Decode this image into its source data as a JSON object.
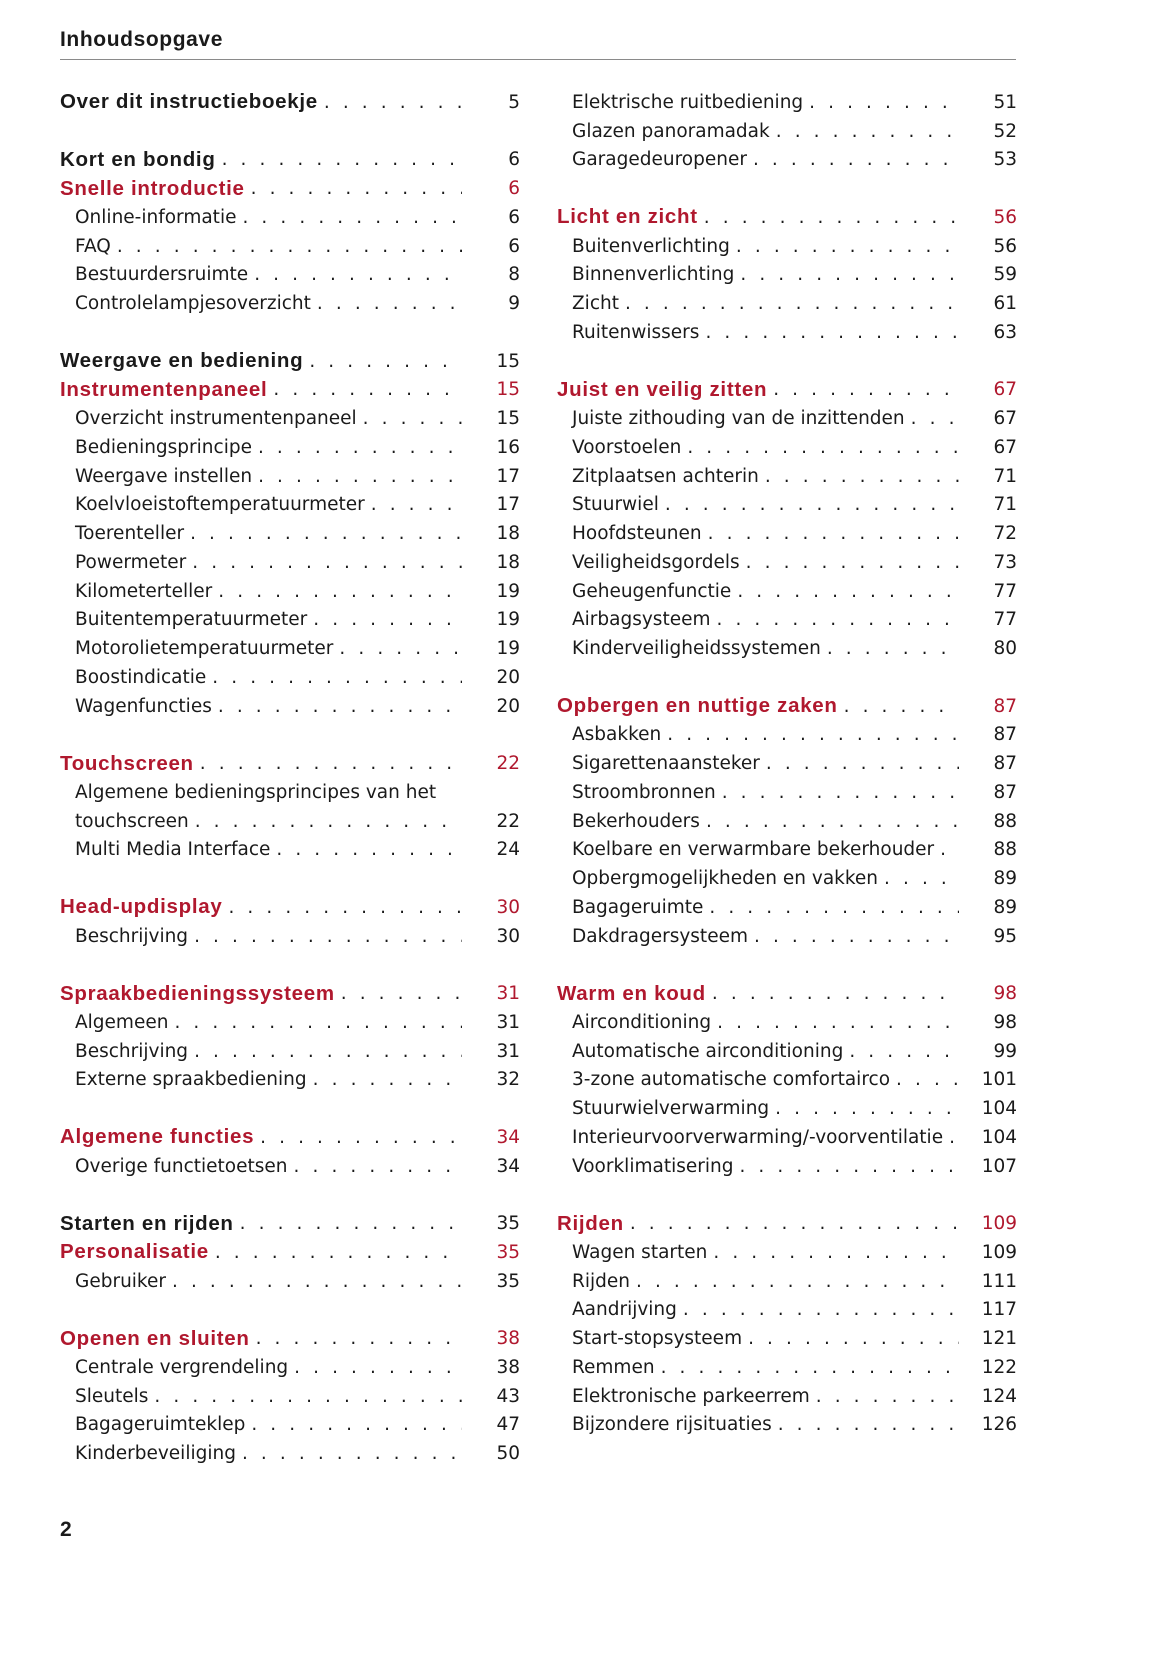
{
  "header": {
    "title": "Inhoudsopgave"
  },
  "page_number": "2",
  "accent_color": "#b0182e",
  "columns": [
    [
      [
        {
          "type": "part",
          "title": "Over dit instructieboekje",
          "page": "5"
        }
      ],
      [
        {
          "type": "part",
          "title": "Kort en bondig",
          "page": "6"
        },
        {
          "type": "chapter",
          "title": "Snelle introductie",
          "page": "6"
        },
        {
          "type": "topic",
          "title": "Online-informatie",
          "page": "6"
        },
        {
          "type": "topic",
          "title": "FAQ",
          "page": "6"
        },
        {
          "type": "topic",
          "title": "Bestuurdersruimte",
          "page": "8"
        },
        {
          "type": "topic",
          "title": "Controlelampjesoverzicht",
          "page": "9"
        }
      ],
      [
        {
          "type": "part",
          "title": "Weergave en bediening",
          "page": "15"
        },
        {
          "type": "chapter",
          "title": "Instrumentenpaneel",
          "page": "15"
        },
        {
          "type": "topic",
          "title": "Overzicht instrumentenpaneel",
          "page": "15"
        },
        {
          "type": "topic",
          "title": "Bedieningsprincipe",
          "page": "16"
        },
        {
          "type": "topic",
          "title": "Weergave instellen",
          "page": "17"
        },
        {
          "type": "topic",
          "title": "Koelvloeistoftemperatuurmeter",
          "page": "17"
        },
        {
          "type": "topic",
          "title": "Toerenteller",
          "page": "18"
        },
        {
          "type": "topic",
          "title": "Powermeter",
          "page": "18"
        },
        {
          "type": "topic",
          "title": "Kilometerteller",
          "page": "19"
        },
        {
          "type": "topic",
          "title": "Buitentemperatuurmeter",
          "page": "19"
        },
        {
          "type": "topic",
          "title": "Motorolietemperatuurmeter",
          "page": "19"
        },
        {
          "type": "topic",
          "title": "Boostindicatie",
          "page": "20"
        },
        {
          "type": "topic",
          "title": "Wagenfuncties",
          "page": "20"
        }
      ],
      [
        {
          "type": "chapter",
          "title": "Touchscreen",
          "page": "22"
        },
        {
          "type": "topic",
          "title": "Algemene bedieningsprincipes van het",
          "continuation": "touchscreen",
          "page": "22"
        },
        {
          "type": "topic",
          "title": "Multi Media Interface",
          "page": "24"
        }
      ],
      [
        {
          "type": "chapter",
          "title": "Head-updisplay",
          "page": "30"
        },
        {
          "type": "topic",
          "title": "Beschrijving",
          "page": "30"
        }
      ],
      [
        {
          "type": "chapter",
          "title": "Spraakbedieningssysteem",
          "page": "31"
        },
        {
          "type": "topic",
          "title": "Algemeen",
          "page": "31"
        },
        {
          "type": "topic",
          "title": "Beschrijving",
          "page": "31"
        },
        {
          "type": "topic",
          "title": "Externe spraakbediening",
          "page": "32"
        }
      ],
      [
        {
          "type": "chapter",
          "title": "Algemene functies",
          "page": "34"
        },
        {
          "type": "topic",
          "title": "Overige functietoetsen",
          "page": "34"
        }
      ],
      [
        {
          "type": "part",
          "title": "Starten en rijden",
          "page": "35"
        },
        {
          "type": "chapter",
          "title": "Personalisatie",
          "page": "35"
        },
        {
          "type": "topic",
          "title": "Gebruiker",
          "page": "35"
        }
      ],
      [
        {
          "type": "chapter",
          "title": "Openen en sluiten",
          "page": "38"
        },
        {
          "type": "topic",
          "title": "Centrale vergrendeling",
          "page": "38"
        },
        {
          "type": "topic",
          "title": "Sleutels",
          "page": "43"
        },
        {
          "type": "topic",
          "title": "Bagageruimteklep",
          "page": "47"
        },
        {
          "type": "topic",
          "title": "Kinderbeveiliging",
          "page": "50"
        }
      ]
    ],
    [
      [
        {
          "type": "topic",
          "title": "Elektrische ruitbediening",
          "page": "51"
        },
        {
          "type": "topic",
          "title": "Glazen panoramadak",
          "page": "52"
        },
        {
          "type": "topic",
          "title": "Garagedeuropener",
          "page": "53"
        }
      ],
      [
        {
          "type": "chapter",
          "title": "Licht en zicht",
          "page": "56"
        },
        {
          "type": "topic",
          "title": "Buitenverlichting",
          "page": "56"
        },
        {
          "type": "topic",
          "title": "Binnenverlichting",
          "page": "59"
        },
        {
          "type": "topic",
          "title": "Zicht",
          "page": "61"
        },
        {
          "type": "topic",
          "title": "Ruitenwissers",
          "page": "63"
        }
      ],
      [
        {
          "type": "chapter",
          "title": "Juist en veilig zitten",
          "page": "67"
        },
        {
          "type": "topic",
          "title": "Juiste zithouding van de inzittenden",
          "page": "67"
        },
        {
          "type": "topic",
          "title": "Voorstoelen",
          "page": "67"
        },
        {
          "type": "topic",
          "title": "Zitplaatsen achterin",
          "page": "71"
        },
        {
          "type": "topic",
          "title": "Stuurwiel",
          "page": "71"
        },
        {
          "type": "topic",
          "title": "Hoofdsteunen",
          "page": "72"
        },
        {
          "type": "topic",
          "title": "Veiligheidsgordels",
          "page": "73"
        },
        {
          "type": "topic",
          "title": "Geheugenfunctie",
          "page": "77"
        },
        {
          "type": "topic",
          "title": "Airbagsysteem",
          "page": "77"
        },
        {
          "type": "topic",
          "title": "Kinderveiligheidssystemen",
          "page": "80"
        }
      ],
      [
        {
          "type": "chapter",
          "title": "Opbergen en nuttige zaken",
          "page": "87"
        },
        {
          "type": "topic",
          "title": "Asbakken",
          "page": "87"
        },
        {
          "type": "topic",
          "title": "Sigarettenaansteker",
          "page": "87"
        },
        {
          "type": "topic",
          "title": "Stroombronnen",
          "page": "87"
        },
        {
          "type": "topic",
          "title": "Bekerhouders",
          "page": "88"
        },
        {
          "type": "topic",
          "title": "Koelbare en verwarmbare bekerhouder",
          "page": "88"
        },
        {
          "type": "topic",
          "title": "Opbergmogelijkheden en vakken",
          "page": "89"
        },
        {
          "type": "topic",
          "title": "Bagageruimte",
          "page": "89"
        },
        {
          "type": "topic",
          "title": "Dakdragersysteem",
          "page": "95"
        }
      ],
      [
        {
          "type": "chapter",
          "title": "Warm en koud",
          "page": "98"
        },
        {
          "type": "topic",
          "title": "Airconditioning",
          "page": "98"
        },
        {
          "type": "topic",
          "title": "Automatische airconditioning",
          "page": "99"
        },
        {
          "type": "topic",
          "title": "3-zone automatische comfortairco",
          "page": "101"
        },
        {
          "type": "topic",
          "title": "Stuurwielverwarming",
          "page": "104"
        },
        {
          "type": "topic",
          "title": "Interieurvoorverwarming/-voorventilatie",
          "page": "104"
        },
        {
          "type": "topic",
          "title": "Voorklimatisering",
          "page": "107"
        }
      ],
      [
        {
          "type": "chapter",
          "title": "Rijden",
          "page": "109"
        },
        {
          "type": "topic",
          "title": "Wagen starten",
          "page": "109"
        },
        {
          "type": "topic",
          "title": "Rijden",
          "page": "111"
        },
        {
          "type": "topic",
          "title": "Aandrijving",
          "page": "117"
        },
        {
          "type": "topic",
          "title": "Start-stopsysteem",
          "page": "121"
        },
        {
          "type": "topic",
          "title": "Remmen",
          "page": "122"
        },
        {
          "type": "topic",
          "title": "Elektronische parkeerrem",
          "page": "124"
        },
        {
          "type": "topic",
          "title": "Bijzondere rijsituaties",
          "page": "126"
        }
      ]
    ]
  ]
}
